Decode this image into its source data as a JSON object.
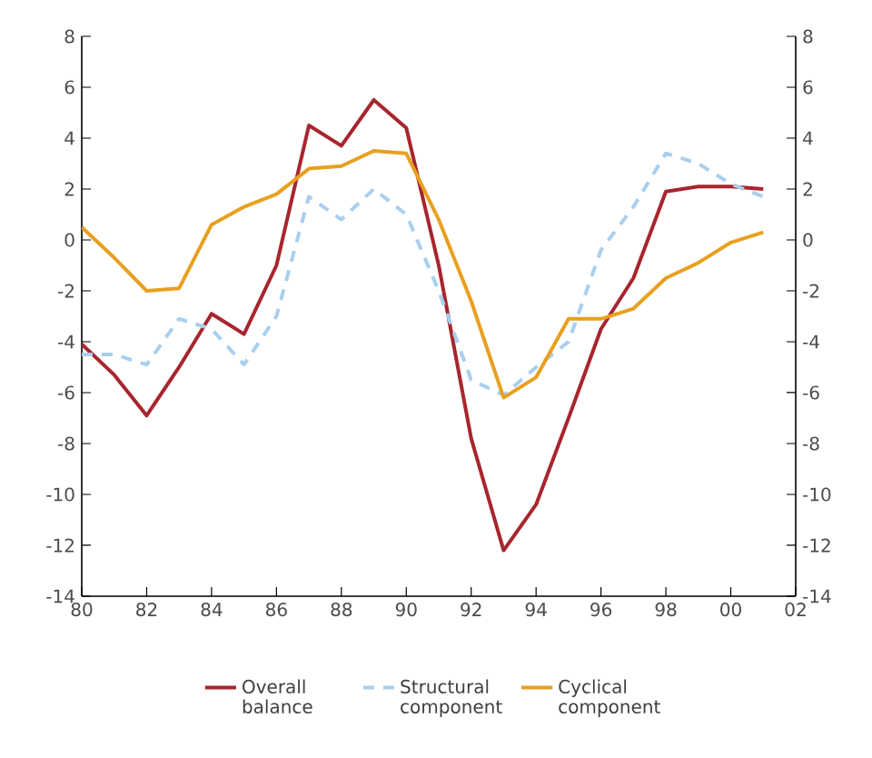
{
  "chart_data": {
    "type": "line",
    "x": [
      "1980",
      "1981",
      "1982",
      "1983",
      "1984",
      "1985",
      "1986",
      "1987",
      "1988",
      "1989",
      "1990",
      "1991",
      "1992",
      "1993",
      "1994",
      "1995",
      "1996",
      "1997",
      "1998",
      "1999",
      "2000",
      "2001"
    ],
    "series": [
      {
        "name": "Overall balance",
        "color": "#a8252e",
        "line_style": "solid",
        "values": [
          -4.1,
          -5.3,
          -6.9,
          -5.0,
          -2.9,
          -3.7,
          -1.0,
          4.5,
          3.7,
          5.5,
          4.4,
          -1.0,
          -7.8,
          -12.2,
          -10.4,
          -7.0,
          -3.5,
          -1.5,
          1.9,
          2.1,
          2.1,
          2.0
        ]
      },
      {
        "name": "Structural component",
        "color": "#a9cfee",
        "line_style": "dashed",
        "values": [
          -4.5,
          -4.5,
          -4.9,
          -3.1,
          -3.5,
          -4.9,
          -3.0,
          1.7,
          0.8,
          2.0,
          1.0,
          -2.0,
          -5.5,
          -6.1,
          -5.0,
          -4.0,
          -0.4,
          1.3,
          3.4,
          3.0,
          2.2,
          1.7
        ]
      },
      {
        "name": "Cyclical component",
        "color": "#e8a020",
        "line_style": "solid",
        "values": [
          0.5,
          -0.7,
          -2.0,
          -1.9,
          0.6,
          1.3,
          1.8,
          2.8,
          2.9,
          3.5,
          3.4,
          0.8,
          -2.4,
          -6.2,
          -5.4,
          -3.1,
          -3.1,
          -2.7,
          -1.5,
          -0.9,
          -0.1,
          0.3
        ]
      }
    ],
    "xlim": [
      "1980",
      "2002"
    ],
    "xticks": [
      {
        "value": "1980",
        "label": "80"
      },
      {
        "value": "1982",
        "label": "82"
      },
      {
        "value": "1984",
        "label": "84"
      },
      {
        "value": "1986",
        "label": "86"
      },
      {
        "value": "1988",
        "label": "88"
      },
      {
        "value": "1990",
        "label": "90"
      },
      {
        "value": "1992",
        "label": "92"
      },
      {
        "value": "1994",
        "label": "94"
      },
      {
        "value": "1996",
        "label": "96"
      },
      {
        "value": "1998",
        "label": "98"
      },
      {
        "value": "2000",
        "label": "00"
      },
      {
        "value": "2002",
        "label": "02"
      }
    ],
    "ylim": [
      -14,
      8
    ],
    "yticks": [
      -14,
      -12,
      -10,
      -8,
      -6,
      -4,
      -2,
      0,
      2,
      4,
      6,
      8
    ],
    "y2lim": [
      -14,
      8
    ],
    "y2ticks": [
      -14,
      -12,
      -10,
      -8,
      -6,
      -4,
      -2,
      0,
      2,
      4,
      6,
      8
    ],
    "grid": false,
    "marker": "none",
    "legend": "bottom"
  }
}
